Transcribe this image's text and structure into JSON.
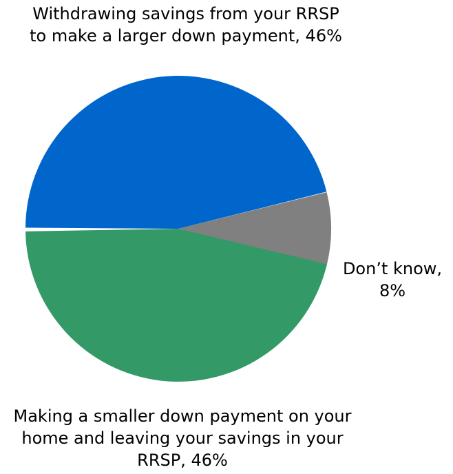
{
  "chart_data": {
    "type": "pie",
    "title": "",
    "slices": [
      {
        "label": "Withdrawing savings from your RRSP to make a larger down payment",
        "value": 46,
        "display": "Withdrawing savings from your RRSP to make a larger down payment, 46%",
        "color": "#0066cc"
      },
      {
        "label": "Don’t know",
        "value": 8,
        "display": "Don’t know, 8%",
        "color": "#808080"
      },
      {
        "label": "Making a smaller down payment on your home and leaving your savings in your RRSP",
        "value": 46,
        "display": "Making a smaller down payment on your home and leaving your savings in your RRSP, 46%",
        "color": "#339966"
      }
    ]
  }
}
